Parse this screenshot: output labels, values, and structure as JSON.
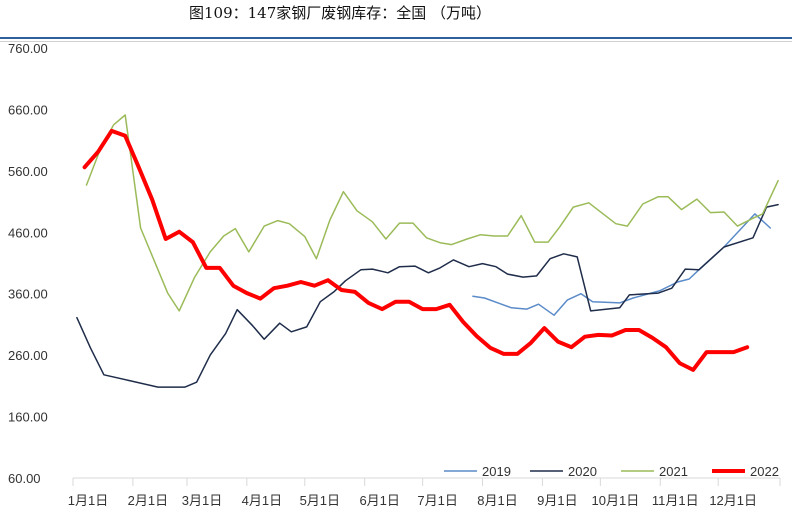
{
  "title": "图109：147家钢厂废钢库存：全国 （万吨）",
  "chart_data": {
    "type": "line",
    "title": "图109：147家钢厂废钢库存：全国 （万吨）",
    "xlabel": "",
    "ylabel": "",
    "x_unit": "day of year",
    "xlim": [
      0,
      366
    ],
    "ylim": [
      60,
      760
    ],
    "y_ticks": [
      "60.00",
      "160.00",
      "260.00",
      "360.00",
      "460.00",
      "560.00",
      "660.00",
      "760.00"
    ],
    "y_tick_values": [
      60,
      160,
      260,
      360,
      460,
      560,
      660,
      760
    ],
    "x_ticks": [
      "1月1日",
      "2月1日",
      "3月1日",
      "4月1日",
      "5月1日",
      "6月1日",
      "7月1日",
      "8月1日",
      "9月1日",
      "10月1日",
      "11月1日",
      "12月1日"
    ],
    "x_tick_days": [
      0,
      31,
      59,
      90,
      120,
      151,
      181,
      212,
      243,
      273,
      304,
      334
    ],
    "grid": false,
    "legend_position": "bottom-right",
    "series": [
      {
        "name": "2019",
        "color": "#5b8bc9",
        "width": 1.5,
        "x": [
          207,
          213,
          220,
          227,
          235,
          241,
          249,
          256,
          263,
          269,
          283,
          290,
          304,
          313,
          319,
          324,
          337,
          353,
          361
        ],
        "y": [
          356,
          353,
          345,
          337,
          335,
          343,
          325,
          350,
          360,
          347,
          345,
          353,
          365,
          379,
          384,
          399,
          436,
          490,
          467
        ]
      },
      {
        "name": "2020",
        "color": "#1f2d4a",
        "width": 1.5,
        "x": [
          2,
          9,
          16,
          44,
          58,
          64,
          71,
          79,
          85,
          93,
          99,
          107,
          113,
          121,
          128,
          135,
          141,
          149,
          155,
          163,
          169,
          177,
          184,
          190,
          197,
          205,
          212,
          219,
          225,
          233,
          240,
          247,
          254,
          261,
          268,
          283,
          288,
          303,
          310,
          317,
          324,
          337,
          352,
          359,
          365
        ],
        "y": [
          321,
          272,
          228,
          208,
          208,
          216,
          260,
          295,
          334,
          308,
          286,
          312,
          298,
          306,
          347,
          363,
          381,
          399,
          400,
          394,
          404,
          405,
          394,
          402,
          415,
          404,
          409,
          404,
          392,
          387,
          389,
          417,
          425,
          420,
          332,
          337,
          358,
          361,
          369,
          400,
          399,
          436,
          451,
          501,
          505
        ]
      },
      {
        "name": "2021",
        "color": "#9bbb59",
        "width": 1.5,
        "x": [
          7,
          14,
          21,
          27,
          35,
          49,
          55,
          63,
          71,
          78,
          84,
          91,
          99,
          106,
          112,
          120,
          126,
          133,
          140,
          147,
          155,
          162,
          169,
          176,
          183,
          190,
          196,
          204,
          211,
          218,
          225,
          232,
          239,
          246,
          252,
          259,
          267,
          281,
          287,
          295,
          303,
          308,
          315,
          323,
          330,
          337,
          344,
          352,
          357,
          365
        ],
        "y": [
          537,
          594,
          635,
          651,
          467,
          361,
          332,
          387,
          428,
          454,
          466,
          428,
          470,
          479,
          474,
          453,
          417,
          480,
          526,
          495,
          477,
          449,
          475,
          475,
          451,
          443,
          440,
          449,
          456,
          454,
          454,
          487,
          444,
          444,
          469,
          501,
          508,
          474,
          470,
          506,
          518,
          518,
          497,
          514,
          492,
          493,
          470,
          483,
          490,
          544
        ]
      },
      {
        "name": "2022",
        "color": "#ff0000",
        "width": 4,
        "x": [
          6,
          13,
          20,
          27,
          34,
          41,
          48,
          55,
          62,
          69,
          76,
          83,
          90,
          97,
          104,
          111,
          118,
          125,
          132,
          139,
          146,
          153,
          160,
          167,
          174,
          181,
          188,
          195,
          202,
          209,
          216,
          223,
          230,
          237,
          244,
          251,
          258,
          265,
          272,
          279,
          286,
          293,
          300,
          307,
          314,
          321,
          328,
          335,
          342,
          349
        ],
        "y": [
          566,
          591,
          625,
          617,
          566,
          513,
          449,
          461,
          444,
          402,
          402,
          373,
          361,
          352,
          369,
          373,
          379,
          373,
          382,
          366,
          363,
          345,
          335,
          347,
          347,
          335,
          335,
          342,
          314,
          291,
          272,
          262,
          262,
          280,
          304,
          282,
          273,
          290,
          293,
          292,
          301,
          301,
          288,
          273,
          247,
          236,
          265,
          265,
          265,
          273
        ]
      }
    ]
  }
}
